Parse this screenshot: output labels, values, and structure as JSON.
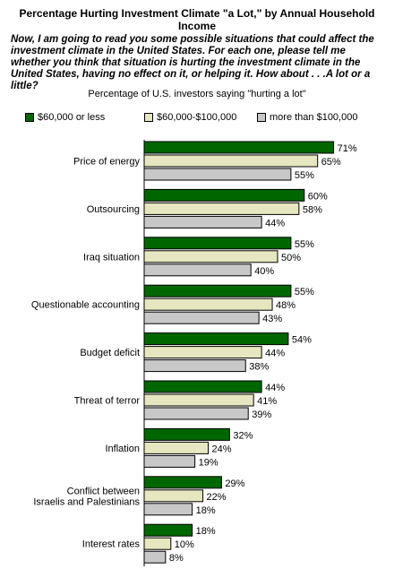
{
  "title": "Percentage Hurting Investment Climate \"a Lot,\" by Annual Household Income",
  "question": "Now, I am going to read you some possible situations that could affect the investment climate in the United States. For each one, please tell me whether you think that situation is hurting the investment climate in the United States, having no effect on it, or helping it. How about . . .A lot or a little?",
  "subtitle": "Percentage of U.S. investors saying \"hurting a lot\"",
  "chart_data": {
    "type": "bar",
    "orientation": "horizontal",
    "categories": [
      [
        "Price of energy"
      ],
      [
        "Outsourcing"
      ],
      [
        "Iraq situation"
      ],
      [
        "Questionable accounting"
      ],
      [
        "Budget deficit"
      ],
      [
        "Threat of terror"
      ],
      [
        "Inflation"
      ],
      [
        "Conflict between",
        "Israelis and Palestinians"
      ],
      [
        "Interest rates"
      ]
    ],
    "series": [
      {
        "name": "$60,000 or less",
        "color": "#006600",
        "values": [
          71,
          60,
          55,
          55,
          54,
          44,
          32,
          29,
          18
        ]
      },
      {
        "name": "$60,000-$100,000",
        "color": "#e6e6c0",
        "values": [
          65,
          58,
          50,
          48,
          44,
          41,
          24,
          22,
          10
        ]
      },
      {
        "name": "more than $100,000",
        "color": "#c8c8c8",
        "values": [
          55,
          44,
          40,
          43,
          38,
          39,
          19,
          18,
          8
        ]
      }
    ],
    "value_suffix": "%",
    "xlim": [
      0,
      100
    ],
    "legend_position": "top",
    "grid": false
  }
}
